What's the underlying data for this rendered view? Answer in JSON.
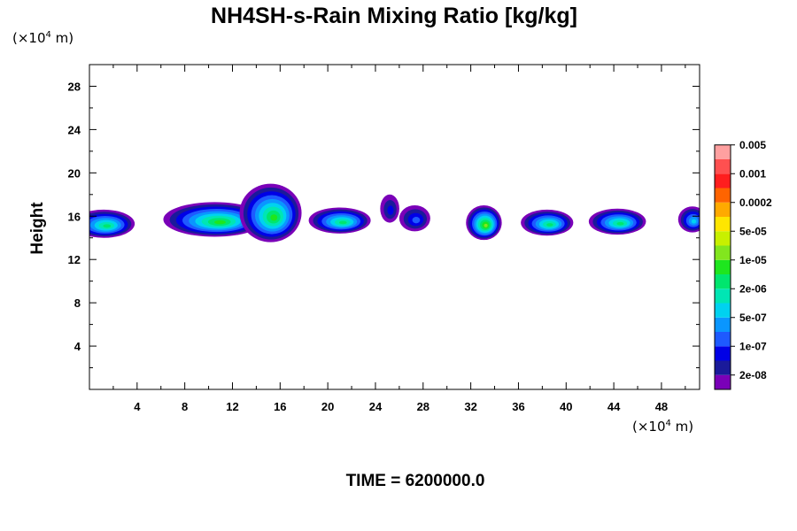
{
  "chart_data": {
    "type": "heatmap",
    "title": "NH4SH-s-Rain Mixing Ratio [kg/kg]",
    "xlabel": "",
    "ylabel": "Height",
    "x_unit": {
      "prefix": "(×10",
      "exp": "4",
      "suffix": " m)"
    },
    "y_unit": {
      "prefix": "(×10",
      "exp": "4",
      "suffix": " m)"
    },
    "xlim": [
      0,
      51.2
    ],
    "ylim": [
      0,
      30
    ],
    "x_ticks": [
      4,
      8,
      12,
      16,
      20,
      24,
      28,
      32,
      36,
      40,
      44,
      48
    ],
    "y_ticks": [
      4,
      8,
      12,
      16,
      20,
      24,
      28
    ],
    "x_minor_step": 2,
    "y_minor_step": 2,
    "time_label": "TIME = 6200000.0",
    "colorbar": {
      "colors": [
        "#7a00b8",
        "#1a1a9a",
        "#0000e6",
        "#1e5aff",
        "#0a96ff",
        "#00d2f0",
        "#00e6b4",
        "#00e66e",
        "#1ee61e",
        "#82e61e",
        "#c8f000",
        "#ffe600",
        "#ffaa00",
        "#ff6400",
        "#ff1e1e",
        "#ff5050",
        "#ffa0a0"
      ],
      "labels": [
        "2e-08",
        "1e-07",
        "5e-07",
        "2e-06",
        "1e-05",
        "5e-05",
        "0.0002",
        "0.001",
        "0.005"
      ]
    },
    "cells": [
      {
        "x": 1.2,
        "y": 15.3,
        "rx": 2.6,
        "ry": 1.3,
        "peak": 8
      },
      {
        "x": 10.5,
        "y": 15.7,
        "rx": 4.3,
        "ry": 1.6,
        "peak": 9
      },
      {
        "x": 15.2,
        "y": 16.3,
        "rx": 2.6,
        "ry": 2.7,
        "peak": 9
      },
      {
        "x": 21.0,
        "y": 15.6,
        "rx": 2.6,
        "ry": 1.2,
        "peak": 8
      },
      {
        "x": 25.2,
        "y": 16.7,
        "rx": 0.8,
        "ry": 1.3,
        "peak": 3
      },
      {
        "x": 27.3,
        "y": 15.8,
        "rx": 1.3,
        "ry": 1.2,
        "peak": 4
      },
      {
        "x": 33.1,
        "y": 15.4,
        "rx": 1.5,
        "ry": 1.6,
        "peak": 10
      },
      {
        "x": 38.4,
        "y": 15.4,
        "rx": 2.2,
        "ry": 1.2,
        "peak": 8
      },
      {
        "x": 44.3,
        "y": 15.5,
        "rx": 2.4,
        "ry": 1.2,
        "peak": 8
      },
      {
        "x": 50.6,
        "y": 15.7,
        "rx": 1.2,
        "ry": 1.2,
        "peak": 6
      }
    ]
  }
}
